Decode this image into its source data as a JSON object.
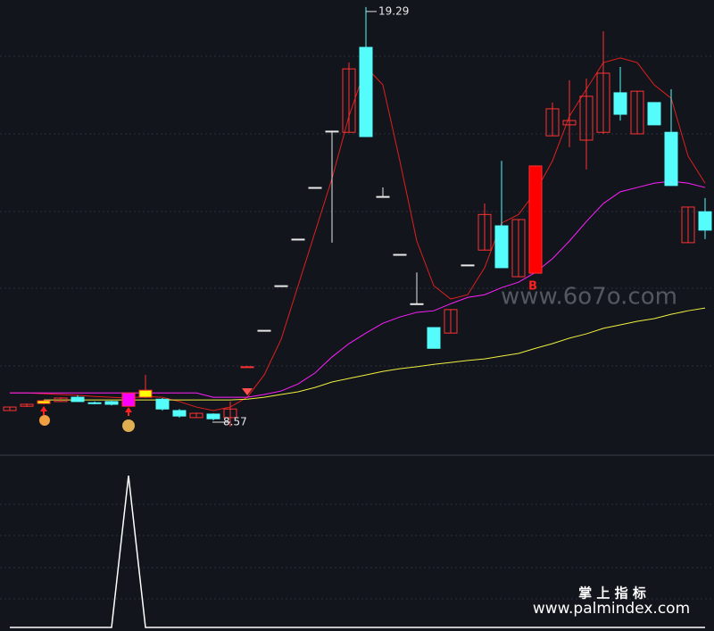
{
  "chart_data": [
    {
      "type": "candlestick",
      "ylim": [
        7.84,
        19.47
      ],
      "up_color": "#ff3232",
      "down_color": "#54fcfc",
      "flat_color": "#e8e8e8",
      "open": [
        8.98,
        9.09,
        9.16,
        9.21,
        9.32,
        9.18,
        9.21,
        9.09,
        9.32,
        9.27,
        8.98,
        8.8,
        8.89,
        8.8,
        10.08,
        11.03,
        12.17,
        13.36,
        14.68,
        16.12,
        16.09,
        18.26,
        14.45,
        12.97,
        11.71,
        11.1,
        10.96,
        12.7,
        13.08,
        13.7,
        12.4,
        12.49,
        16.0,
        16.28,
        15.89,
        16.09,
        17.1,
        16.05,
        16.85,
        16.09,
        13.27,
        14.06
      ],
      "high": [
        9.07,
        9.16,
        9.25,
        9.32,
        9.37,
        9.21,
        9.23,
        9.43,
        9.89,
        9.3,
        9.02,
        8.93,
        8.91,
        9.21,
        10.12,
        11.03,
        12.17,
        13.36,
        14.68,
        16.12,
        17.87,
        19.29,
        14.68,
        12.97,
        12.51,
        11.1,
        11.56,
        12.7,
        14.27,
        15.36,
        13.86,
        15.23,
        16.85,
        17.42,
        17.46,
        18.67,
        17.76,
        17.14,
        16.85,
        17.19,
        14.18,
        14.41
      ],
      "low": [
        8.98,
        9.07,
        9.14,
        9.21,
        9.21,
        9.14,
        9.11,
        9.09,
        9.3,
        8.98,
        8.8,
        8.8,
        8.73,
        8.57,
        10.08,
        11.03,
        12.17,
        13.36,
        14.68,
        13.27,
        16.09,
        15.98,
        14.45,
        12.97,
        11.71,
        10.57,
        10.96,
        12.7,
        13.08,
        12.63,
        12.4,
        12.49,
        16.0,
        15.71,
        15.14,
        16.05,
        16.39,
        16.05,
        16.28,
        14.73,
        13.27,
        13.36
      ],
      "close": [
        9.07,
        9.14,
        9.23,
        9.3,
        9.21,
        9.16,
        9.14,
        9.43,
        9.5,
        9.02,
        8.84,
        8.91,
        8.77,
        9.02,
        10.1,
        11.03,
        12.17,
        13.36,
        14.68,
        16.12,
        17.71,
        15.98,
        14.45,
        12.97,
        11.71,
        10.57,
        11.56,
        12.7,
        13.99,
        12.63,
        13.86,
        15.23,
        16.69,
        16.39,
        17.01,
        17.6,
        16.55,
        17.14,
        16.28,
        14.73,
        14.18,
        13.59
      ],
      "highlight": [
        {
          "index": 2,
          "color": "#ffff00"
        },
        {
          "index": 7,
          "color": "#ff00ff"
        },
        {
          "index": 8,
          "color": "#ffff00"
        },
        {
          "index": 31,
          "color": "#ff0000"
        }
      ],
      "lines": [
        {
          "color": "#e0201e",
          "values": [
            9.43,
            9.43,
            9.41,
            9.39,
            9.37,
            9.34,
            9.32,
            9.3,
            9.34,
            9.32,
            9.21,
            9.07,
            8.98,
            9.07,
            9.32,
            9.89,
            10.8,
            12.17,
            13.54,
            14.91,
            16.5,
            17.76,
            17.3,
            15.36,
            13.31,
            12.17,
            11.83,
            11.94,
            12.63,
            13.77,
            13.99,
            14.57,
            15.36,
            16.5,
            17.19,
            17.87,
            17.99,
            17.87,
            17.3,
            16.96,
            15.48,
            14.79
          ]
        },
        {
          "color": "#ff20ff",
          "values": [
            9.43,
            9.43,
            9.43,
            9.43,
            9.43,
            9.43,
            9.43,
            9.43,
            9.43,
            9.43,
            9.43,
            9.43,
            9.32,
            9.32,
            9.32,
            9.39,
            9.48,
            9.66,
            9.94,
            10.35,
            10.69,
            10.96,
            11.21,
            11.37,
            11.49,
            11.53,
            11.71,
            11.87,
            11.94,
            12.12,
            12.26,
            12.51,
            12.86,
            13.31,
            13.81,
            14.27,
            14.57,
            14.68,
            14.79,
            14.84,
            14.79,
            14.68
          ]
        },
        {
          "color": "#f0f040",
          "values": [
            null,
            null,
            9.25,
            9.25,
            9.25,
            9.25,
            9.25,
            9.25,
            9.25,
            9.25,
            9.25,
            9.25,
            9.25,
            9.25,
            9.27,
            9.32,
            9.39,
            9.46,
            9.57,
            9.71,
            9.8,
            9.89,
            9.98,
            10.05,
            10.1,
            10.16,
            10.21,
            10.26,
            10.3,
            10.37,
            10.44,
            10.57,
            10.69,
            10.83,
            10.94,
            11.08,
            11.17,
            11.26,
            11.33,
            11.44,
            11.53,
            11.6
          ]
        }
      ],
      "annotations": [
        {
          "value": 19.29
        },
        {
          "value": 8.57
        }
      ],
      "watermark": "www.6o7o.com",
      "signal": "B"
    },
    {
      "type": "line",
      "ylim": [
        0,
        1.135
      ],
      "color": "#ffffff",
      "values": [
        0,
        0,
        0,
        0,
        0,
        0,
        0,
        1,
        0,
        0,
        0,
        0,
        0,
        0,
        0,
        0,
        0,
        0,
        0,
        0,
        0,
        0,
        0,
        0,
        0,
        0,
        0,
        0,
        0,
        0,
        0,
        0,
        0,
        0,
        0,
        0,
        0,
        0,
        0,
        0,
        0,
        0
      ],
      "brand": "掌 上 指 标",
      "url": "www.palmindex.com"
    }
  ]
}
